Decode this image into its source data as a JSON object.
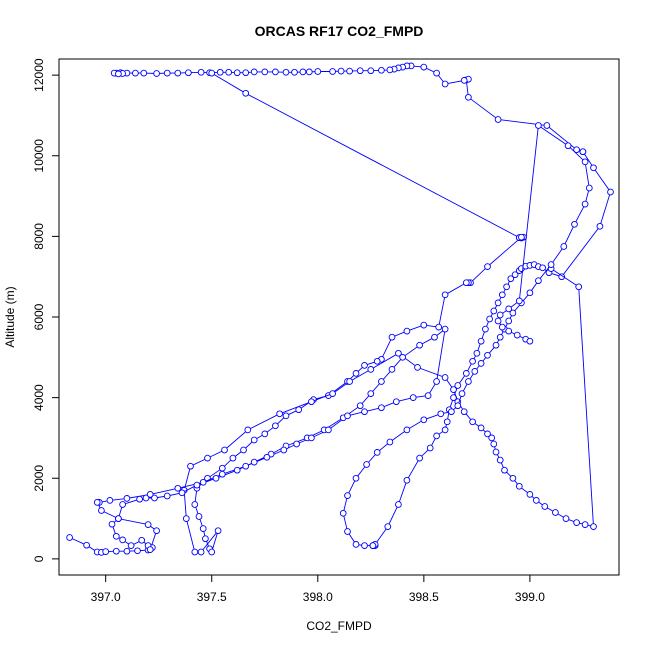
{
  "chart_data": {
    "type": "line",
    "title": "ORCAS RF17 CO2_FMPD",
    "xlabel": "CO2_FMPD",
    "ylabel": "Altitude (m)",
    "xlim": [
      396.78,
      399.42
    ],
    "ylim": [
      -400,
      12400
    ],
    "xticks": [
      {
        "value": 397.0,
        "label": "397.0"
      },
      {
        "value": 397.5,
        "label": "397.5"
      },
      {
        "value": 398.0,
        "label": "398.0"
      },
      {
        "value": 398.5,
        "label": "398.5"
      },
      {
        "value": 399.0,
        "label": "399.0"
      }
    ],
    "yticks": [
      {
        "value": 0,
        "label": "0"
      },
      {
        "value": 2000,
        "label": "2000"
      },
      {
        "value": 4000,
        "label": "4000"
      },
      {
        "value": 6000,
        "label": "6000"
      },
      {
        "value": 8000,
        "label": "8000"
      },
      {
        "value": 10000,
        "label": "10000"
      },
      {
        "value": 12000,
        "label": "12000"
      }
    ],
    "grid": false,
    "legend": "none",
    "line_style": "overplotted",
    "color": "#0000ff",
    "series": [
      {
        "x": [
          398.26,
          398.27,
          398.26,
          398.27,
          398.33,
          398.38,
          398.42,
          398.48,
          398.53,
          398.56,
          398.6,
          398.61,
          398.62,
          398.64,
          398.66,
          398.7,
          398.73,
          398.75,
          398.77,
          398.79,
          398.81,
          398.83,
          398.85,
          398.87,
          398.89,
          398.91,
          398.93,
          398.95,
          398.96,
          398.98,
          399.0,
          399.02,
          399.04,
          399.06,
          399.09,
          399.15,
          399.33,
          399.38,
          399.3,
          399.25,
          399.25,
          399.22,
          399.08,
          398.85,
          398.71,
          398.7,
          398.71,
          398.69,
          398.6,
          398.56,
          398.5,
          398.44,
          398.42,
          398.4,
          398.38,
          398.36,
          398.34,
          398.3,
          398.25,
          398.2,
          398.15,
          398.11,
          398.07,
          398.0,
          397.96,
          397.93,
          397.89,
          397.85,
          397.8,
          397.75,
          397.7,
          397.66,
          397.62,
          397.58,
          397.54,
          397.49,
          397.45,
          397.39,
          397.34,
          397.29,
          397.24,
          397.18,
          397.14,
          397.1,
          397.07,
          397.05,
          397.04,
          397.07,
          397.08,
          397.06
        ],
        "y": [
          330,
          330,
          330,
          360,
          800,
          1350,
          1950,
          2500,
          2750,
          3050,
          3200,
          3400,
          3700,
          4000,
          4300,
          4600,
          4900,
          5100,
          5400,
          5700,
          5950,
          6150,
          6350,
          6550,
          6750,
          6950,
          7050,
          7150,
          7200,
          7260,
          7280,
          7300,
          7250,
          7220,
          7100,
          7000,
          8250,
          9100,
          9700,
          10100,
          10100,
          10150,
          10750,
          10900,
          11450,
          11880,
          11900,
          11870,
          11780,
          12050,
          12200,
          12230,
          12230,
          12200,
          12180,
          12150,
          12130,
          12120,
          12110,
          12110,
          12100,
          12100,
          12090,
          12090,
          12080,
          12080,
          12070,
          12070,
          12080,
          12080,
          12080,
          12060,
          12060,
          12070,
          12070,
          12060,
          12070,
          12060,
          12050,
          12050,
          12040,
          12050,
          12050,
          12050,
          12060,
          12050,
          12050,
          12060,
          12040,
          12030
        ]
      },
      {
        "x": [
          397.5,
          397.66,
          398.95,
          398.97,
          398.96,
          398.95,
          398.96,
          398.8,
          398.72,
          398.71,
          398.7,
          398.6,
          398.57,
          398.5,
          398.42,
          398.35,
          398.3,
          398.28,
          398.22,
          398.18,
          398.14,
          398.05,
          397.98,
          397.91,
          397.85,
          397.8,
          397.75,
          397.7,
          397.65,
          397.6,
          397.55,
          397.48,
          397.43,
          397.42,
          397.44,
          397.46,
          397.47,
          397.49
        ],
        "y": [
          12050,
          11550,
          7970,
          7980,
          7960,
          7970,
          7980,
          7250,
          6850,
          6850,
          6850,
          6550,
          5750,
          5800,
          5650,
          5500,
          4950,
          4900,
          4800,
          4600,
          4400,
          4050,
          3950,
          3700,
          3550,
          3300,
          3100,
          2950,
          2700,
          2500,
          2250,
          2000,
          1750,
          1350,
          1050,
          750,
          500,
          250
        ]
      },
      {
        "x": [
          397.5,
          397.53,
          397.45,
          397.42,
          397.38,
          397.37,
          397.4,
          397.48,
          397.56,
          397.67,
          397.82,
          397.97,
          398.07,
          398.15,
          398.25,
          398.38,
          398.47,
          398.6,
          398.64,
          398.66,
          398.69,
          398.73,
          398.77,
          398.8,
          398.82,
          398.83,
          398.84,
          398.86,
          398.88,
          398.92,
          398.95,
          399.0,
          399.03,
          399.07,
          399.12,
          399.17,
          399.22,
          399.26,
          399.3,
          399.23,
          399.1
        ],
        "y": [
          170,
          700,
          170,
          170,
          1000,
          1700,
          2300,
          2500,
          2700,
          3200,
          3600,
          3900,
          4100,
          4400,
          4700,
          5100,
          4750,
          4500,
          4200,
          3900,
          3650,
          3400,
          3250,
          3100,
          3000,
          2850,
          2650,
          2450,
          2200,
          2000,
          1800,
          1600,
          1450,
          1300,
          1150,
          1000,
          900,
          850,
          800,
          6750,
          7200
        ]
      },
      {
        "x": [
          398.26,
          398.22,
          398.18,
          398.14,
          398.12,
          398.14,
          398.18,
          398.23,
          398.28,
          398.34,
          398.42,
          398.5,
          398.58,
          398.63,
          398.66,
          398.68,
          398.71,
          398.74,
          398.77,
          398.8,
          398.84,
          398.86,
          398.88,
          398.9,
          398.92,
          398.96,
          399.0,
          399.04,
          399.1,
          399.16,
          399.21,
          399.26,
          399.28,
          399.26,
          399.18,
          399.04,
          398.95,
          398.9,
          398.86,
          398.85,
          398.87,
          398.9,
          398.94,
          398.98,
          399.0
        ],
        "y": [
          330,
          330,
          360,
          680,
          1130,
          1570,
          2000,
          2340,
          2640,
          2900,
          3200,
          3450,
          3600,
          3650,
          3800,
          4100,
          4400,
          4650,
          4850,
          5050,
          5300,
          5500,
          5700,
          5900,
          6100,
          6350,
          6600,
          6900,
          7300,
          7750,
          8300,
          8800,
          9200,
          9850,
          10250,
          10750,
          6400,
          6200,
          6050,
          5900,
          5750,
          5650,
          5550,
          5450,
          5400
        ]
      },
      {
        "x": [
          396.83,
          396.91,
          396.96,
          396.98,
          397.0,
          397.05,
          397.1,
          397.15,
          397.2,
          397.22,
          397.2,
          397.17,
          397.12,
          397.08,
          397.05,
          397.03,
          397.06,
          397.08,
          397.16,
          397.19,
          397.23,
          397.29,
          397.36,
          397.43,
          397.52,
          397.62,
          397.7,
          397.78,
          397.85,
          397.95,
          398.03,
          398.12,
          398.2,
          398.25,
          398.3,
          398.35,
          398.4,
          398.48,
          398.55,
          398.6,
          398.56,
          398.52,
          398.45,
          398.37,
          398.3,
          398.22,
          398.14,
          398.05,
          397.97,
          397.9,
          397.84,
          397.76,
          397.66,
          397.55,
          397.46,
          397.34,
          397.21,
          397.1,
          397.02,
          396.97,
          396.96,
          396.98,
          397.06,
          397.2,
          397.24,
          397.21
        ],
        "y": [
          530,
          340,
          170,
          160,
          180,
          190,
          190,
          200,
          220,
          280,
          330,
          460,
          330,
          470,
          560,
          860,
          1000,
          1350,
          1480,
          1510,
          1510,
          1560,
          1640,
          1830,
          2000,
          2200,
          2400,
          2600,
          2800,
          3000,
          3200,
          3500,
          3800,
          4100,
          4400,
          4700,
          5000,
          5300,
          5500,
          5700,
          4400,
          4050,
          4000,
          3900,
          3750,
          3650,
          3550,
          3200,
          3000,
          2850,
          2700,
          2520,
          2300,
          2100,
          1900,
          1750,
          1600,
          1500,
          1450,
          1400,
          1400,
          1200,
          1000,
          850,
          700,
          230
        ]
      }
    ]
  }
}
